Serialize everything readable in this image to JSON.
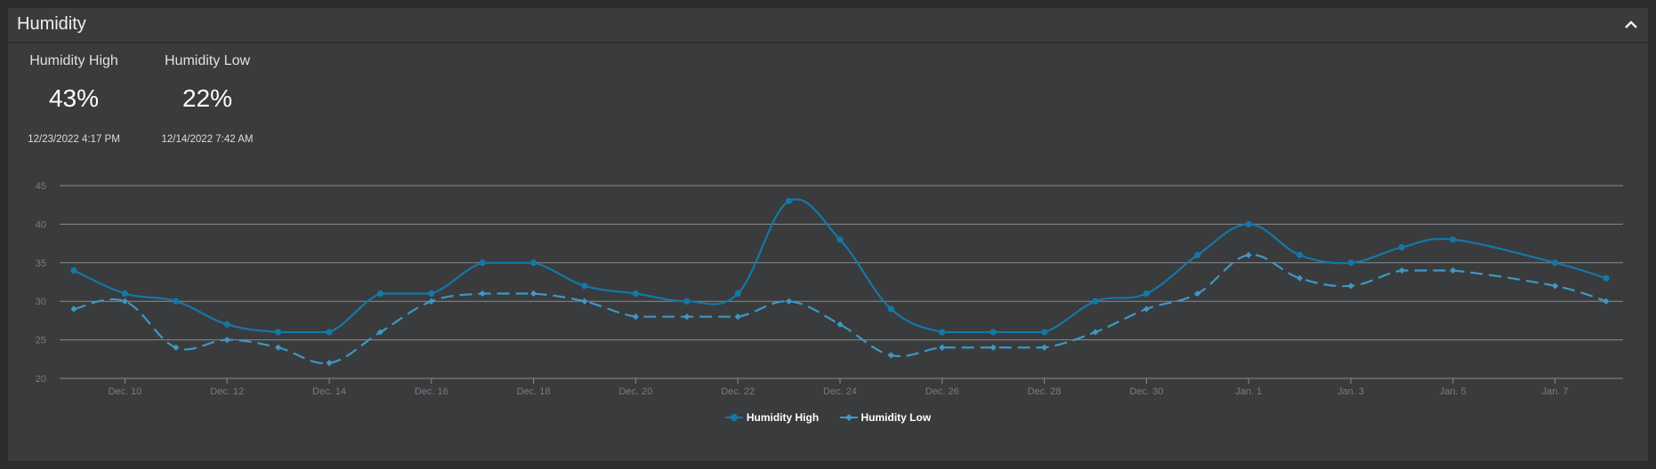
{
  "header": {
    "title": "Humidity"
  },
  "stats": [
    {
      "label": "Humidity High",
      "value": "43%",
      "time": "12/23/2022 4:17 PM"
    },
    {
      "label": "Humidity Low",
      "value": "22%",
      "time": "12/14/2022 7:42 AM"
    }
  ],
  "colors": {
    "high": "#1577a8",
    "low": "#3d98c4",
    "grid": "#8a8b8d",
    "tick": "#7a7b7d"
  },
  "chart_data": {
    "type": "line",
    "x_start_label": "Dec. 9",
    "x": [
      "Dec. 9",
      "Dec. 10",
      "Dec. 11",
      "Dec. 12",
      "Dec. 13",
      "Dec. 14",
      "Dec. 15",
      "Dec. 16",
      "Dec. 17",
      "Dec. 18",
      "Dec. 19",
      "Dec. 20",
      "Dec. 21",
      "Dec. 22",
      "Dec. 23",
      "Dec. 24",
      "Dec. 25",
      "Dec. 26",
      "Dec. 27",
      "Dec. 28",
      "Dec. 29",
      "Dec. 30",
      "Dec. 31",
      "Jan. 1",
      "Jan. 2",
      "Jan. 3",
      "Jan. 4",
      "Jan. 5",
      "Jan. 6",
      "Jan. 7",
      "Jan. 8"
    ],
    "x_ticks": [
      "Dec. 10",
      "Dec. 12",
      "Dec. 14",
      "Dec. 16",
      "Dec. 18",
      "Dec. 20",
      "Dec. 22",
      "Dec. 24",
      "Dec. 26",
      "Dec. 28",
      "Dec. 30",
      "Jan. 1",
      "Jan. 3",
      "Jan. 5",
      "Jan. 7"
    ],
    "y_ticks": [
      "20",
      "25",
      "30",
      "35",
      "40",
      "45"
    ],
    "ylim": [
      20,
      45
    ],
    "series": [
      {
        "name": "Humidity High",
        "style": "solid",
        "values": [
          34,
          31,
          30,
          27,
          26,
          26,
          31,
          31,
          35,
          35,
          32,
          31,
          30,
          31,
          43,
          38,
          29,
          26,
          26,
          26,
          30,
          31,
          36,
          40,
          36,
          35,
          37,
          38,
          null,
          35,
          33
        ]
      },
      {
        "name": "Humidity Low",
        "style": "dashed",
        "values": [
          29,
          30,
          24,
          25,
          24,
          22,
          26,
          30,
          31,
          31,
          30,
          28,
          28,
          28,
          30,
          27,
          23,
          24,
          24,
          24,
          26,
          29,
          31,
          36,
          33,
          32,
          34,
          34,
          null,
          32,
          30
        ]
      }
    ],
    "legend_position": "bottom",
    "grid": true
  }
}
